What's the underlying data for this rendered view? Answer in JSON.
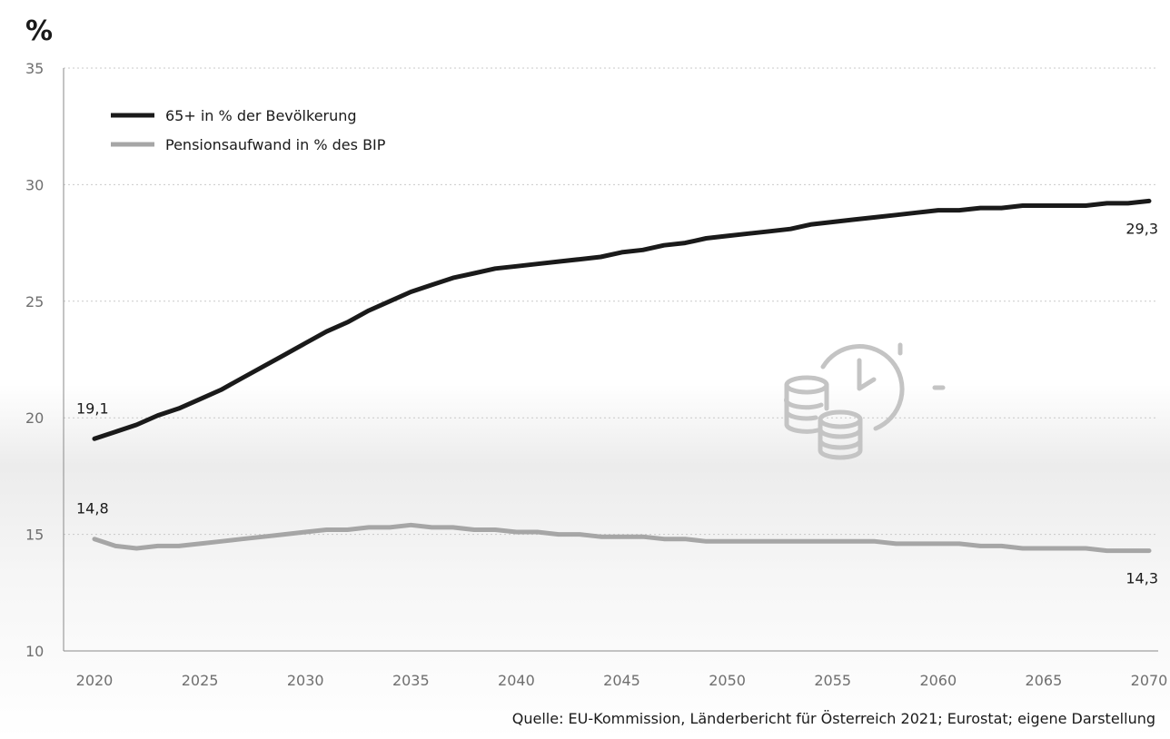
{
  "chart_data": {
    "type": "line",
    "unit_label": "%",
    "ylim": [
      10,
      35
    ],
    "yticks": [
      10,
      15,
      20,
      25,
      30,
      35
    ],
    "xlim": [
      2020,
      2070
    ],
    "xticks": [
      2020,
      2025,
      2030,
      2035,
      2040,
      2045,
      2050,
      2055,
      2060,
      2065,
      2070
    ],
    "grid": true,
    "legend_position": "top-left",
    "series": [
      {
        "name": "65+ in % der Bevölkerung",
        "color": "#1a1a1a",
        "x": [
          2020,
          2021,
          2022,
          2023,
          2024,
          2025,
          2026,
          2027,
          2028,
          2029,
          2030,
          2031,
          2032,
          2033,
          2034,
          2035,
          2036,
          2037,
          2038,
          2039,
          2040,
          2041,
          2042,
          2043,
          2044,
          2045,
          2046,
          2047,
          2048,
          2049,
          2050,
          2051,
          2052,
          2053,
          2054,
          2055,
          2056,
          2057,
          2058,
          2059,
          2060,
          2061,
          2062,
          2063,
          2064,
          2065,
          2066,
          2067,
          2068,
          2069,
          2070
        ],
        "values": [
          19.1,
          19.4,
          19.7,
          20.1,
          20.4,
          20.8,
          21.2,
          21.7,
          22.2,
          22.7,
          23.2,
          23.7,
          24.1,
          24.6,
          25.0,
          25.4,
          25.7,
          26.0,
          26.2,
          26.4,
          26.5,
          26.6,
          26.7,
          26.8,
          26.9,
          27.1,
          27.2,
          27.4,
          27.5,
          27.7,
          27.8,
          27.9,
          28.0,
          28.1,
          28.3,
          28.4,
          28.5,
          28.6,
          28.7,
          28.8,
          28.9,
          28.9,
          29.0,
          29.0,
          29.1,
          29.1,
          29.1,
          29.1,
          29.2,
          29.2,
          29.3
        ],
        "start_label": "19,1",
        "end_label": "29,3"
      },
      {
        "name": "Pensionsaufwand in % des BIP",
        "color": "#a6a6a6",
        "x": [
          2020,
          2021,
          2022,
          2023,
          2024,
          2025,
          2026,
          2027,
          2028,
          2029,
          2030,
          2031,
          2032,
          2033,
          2034,
          2035,
          2036,
          2037,
          2038,
          2039,
          2040,
          2041,
          2042,
          2043,
          2044,
          2045,
          2046,
          2047,
          2048,
          2049,
          2050,
          2051,
          2052,
          2053,
          2054,
          2055,
          2056,
          2057,
          2058,
          2059,
          2060,
          2061,
          2062,
          2063,
          2064,
          2065,
          2066,
          2067,
          2068,
          2069,
          2070
        ],
        "values": [
          14.8,
          14.5,
          14.4,
          14.5,
          14.5,
          14.6,
          14.7,
          14.8,
          14.9,
          15.0,
          15.1,
          15.2,
          15.2,
          15.3,
          15.3,
          15.4,
          15.3,
          15.3,
          15.2,
          15.2,
          15.1,
          15.1,
          15.0,
          15.0,
          14.9,
          14.9,
          14.9,
          14.8,
          14.8,
          14.7,
          14.7,
          14.7,
          14.7,
          14.7,
          14.7,
          14.7,
          14.7,
          14.7,
          14.6,
          14.6,
          14.6,
          14.6,
          14.5,
          14.5,
          14.4,
          14.4,
          14.4,
          14.4,
          14.3,
          14.3,
          14.3
        ],
        "start_label": "14,8",
        "end_label": "14,3"
      }
    ],
    "source": "Quelle: EU-Kommission, Länderbericht für Österreich 2021; Eurostat; eigene Darstellung"
  },
  "icon": {
    "name": "coins-clock-icon",
    "color": "#c4c4c4"
  }
}
